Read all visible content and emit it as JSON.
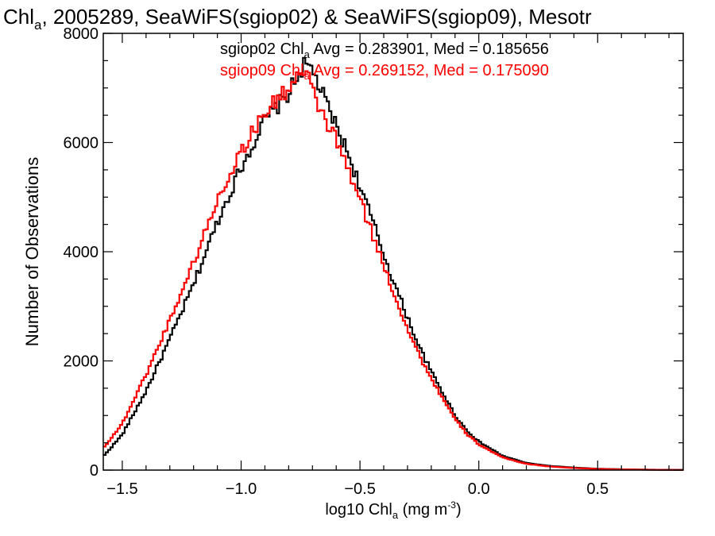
{
  "chart_data": {
    "type": "line",
    "title_parts": {
      "pre": "Chl",
      "sub": "a",
      "post": ", 2005289, SeaWiFS(sgiop02) & SeaWiFS(sgiop09), Mesotr"
    },
    "xlabel_parts": {
      "pre": "log10 Chl",
      "sub": "a",
      "mid": " (mg m",
      "sup": "-3",
      "post": ")"
    },
    "ylabel": "Number of Observations",
    "xlim": [
      -1.58,
      0.86
    ],
    "ylim": [
      0,
      8000
    ],
    "xticks": [
      -1.5,
      -1.0,
      -0.5,
      0.0,
      0.5
    ],
    "xtick_labels": [
      "−1.5",
      "−1.0",
      "−0.5",
      "0.0",
      "0.5"
    ],
    "yticks": [
      0,
      2000,
      4000,
      6000,
      8000
    ],
    "ytick_labels": [
      "0",
      "2000",
      "4000",
      "6000",
      "8000"
    ],
    "bin_width": 0.01,
    "series": [
      {
        "name": "sgiop02",
        "color": "#000000",
        "stats_parts": {
          "pre": "sgiop02 Chl",
          "sub": "a",
          "post": " Avg = 0.283901, Med = 0.185656"
        },
        "points": [
          [
            -1.58,
            250
          ],
          [
            -1.5,
            650
          ],
          [
            -1.4,
            1450
          ],
          [
            -1.3,
            2400
          ],
          [
            -1.2,
            3400
          ],
          [
            -1.1,
            4550
          ],
          [
            -1.0,
            5550
          ],
          [
            -0.9,
            6400
          ],
          [
            -0.8,
            6900
          ],
          [
            -0.74,
            7400
          ],
          [
            -0.7,
            7350
          ],
          [
            -0.66,
            6900
          ],
          [
            -0.6,
            6300
          ],
          [
            -0.55,
            5800
          ],
          [
            -0.5,
            5200
          ],
          [
            -0.45,
            4600
          ],
          [
            -0.4,
            3950
          ],
          [
            -0.35,
            3350
          ],
          [
            -0.3,
            2800
          ],
          [
            -0.25,
            2250
          ],
          [
            -0.2,
            1800
          ],
          [
            -0.15,
            1400
          ],
          [
            -0.1,
            1000
          ],
          [
            -0.05,
            720
          ],
          [
            0.0,
            520
          ],
          [
            0.1,
            260
          ],
          [
            0.2,
            130
          ],
          [
            0.3,
            75
          ],
          [
            0.4,
            45
          ],
          [
            0.5,
            25
          ],
          [
            0.6,
            14
          ],
          [
            0.7,
            8
          ],
          [
            0.86,
            3
          ]
        ]
      },
      {
        "name": "sgiop09",
        "color": "#ff0000",
        "stats_parts": {
          "pre": "sgiop09 Chl",
          "sub": "a",
          "post": " Avg = 0.269152, Med = 0.175090"
        },
        "points": [
          [
            -1.58,
            400
          ],
          [
            -1.5,
            850
          ],
          [
            -1.4,
            1750
          ],
          [
            -1.3,
            2750
          ],
          [
            -1.2,
            3800
          ],
          [
            -1.1,
            4950
          ],
          [
            -1.0,
            5850
          ],
          [
            -0.9,
            6550
          ],
          [
            -0.8,
            7000
          ],
          [
            -0.76,
            7250
          ],
          [
            -0.72,
            7200
          ],
          [
            -0.68,
            6700
          ],
          [
            -0.6,
            6050
          ],
          [
            -0.55,
            5500
          ],
          [
            -0.5,
            4950
          ],
          [
            -0.45,
            4350
          ],
          [
            -0.4,
            3750
          ],
          [
            -0.35,
            3150
          ],
          [
            -0.3,
            2600
          ],
          [
            -0.25,
            2100
          ],
          [
            -0.2,
            1680
          ],
          [
            -0.15,
            1300
          ],
          [
            -0.1,
            930
          ],
          [
            -0.05,
            660
          ],
          [
            0.0,
            470
          ],
          [
            0.1,
            230
          ],
          [
            0.2,
            115
          ],
          [
            0.3,
            65
          ],
          [
            0.4,
            38
          ],
          [
            0.5,
            22
          ],
          [
            0.6,
            12
          ],
          [
            0.7,
            7
          ],
          [
            0.86,
            2
          ]
        ]
      }
    ]
  }
}
